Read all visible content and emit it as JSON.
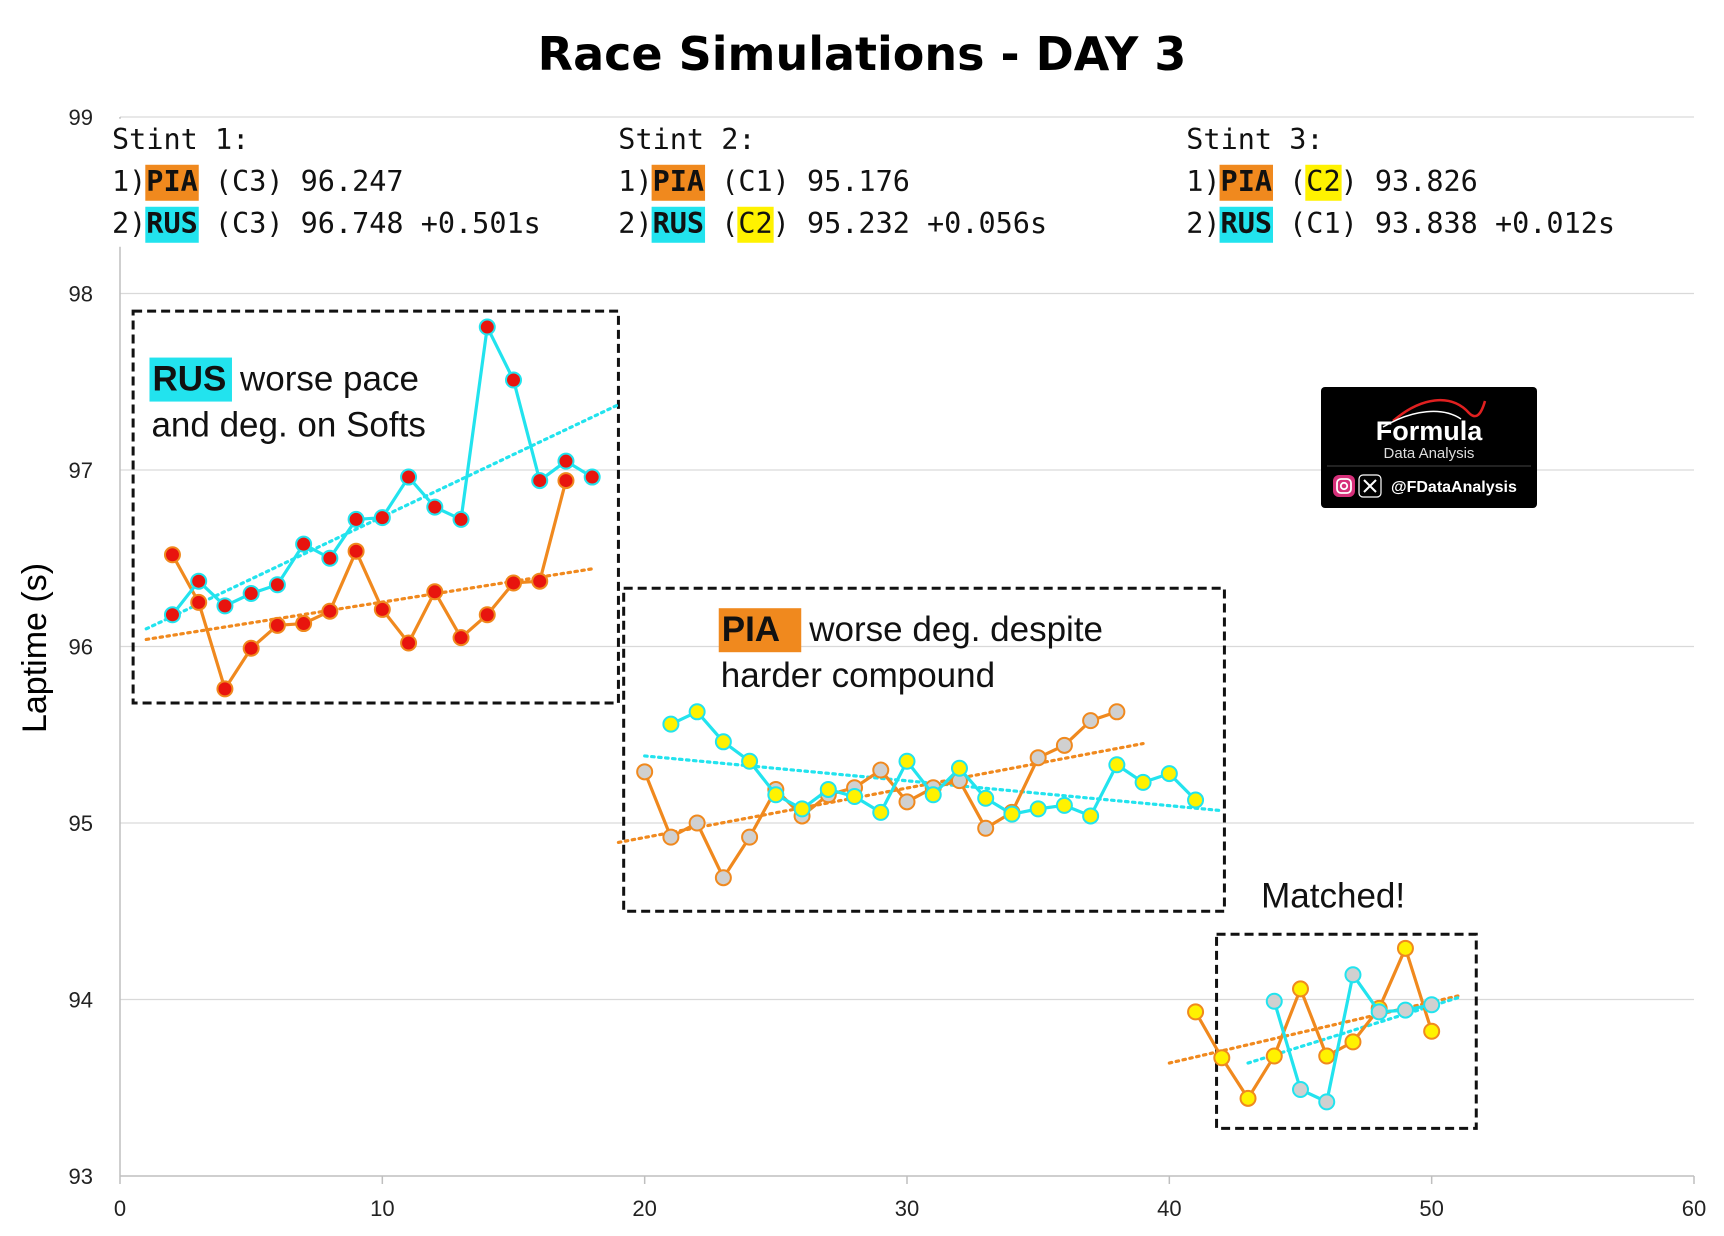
{
  "chart_data": {
    "type": "line",
    "title": "Race Simulations - DAY 3",
    "xlabel": "",
    "ylabel": "Laptime (s)",
    "xlim": [
      0,
      60
    ],
    "ylim": [
      93,
      99
    ],
    "xticks": [
      0,
      10,
      20,
      30,
      40,
      50,
      60
    ],
    "yticks": [
      93,
      94,
      95,
      96,
      97,
      98,
      99
    ],
    "grid": "horizontal",
    "series": [
      {
        "name": "PIA Stint 1 (C3)",
        "driver": "PIA",
        "compound": "C3",
        "line_color": "#F0891E",
        "marker_color": "#E8140E",
        "x": [
          2,
          3,
          4,
          5,
          6,
          7,
          8,
          9,
          10,
          11,
          12,
          13,
          14,
          15,
          16,
          17
        ],
        "y": [
          96.52,
          96.25,
          95.76,
          95.99,
          96.12,
          96.13,
          96.2,
          96.54,
          96.21,
          96.02,
          96.31,
          96.05,
          96.18,
          96.36,
          96.37,
          96.94
        ]
      },
      {
        "name": "RUS Stint 1 (C3)",
        "driver": "RUS",
        "compound": "C3",
        "line_color": "#22E3EE",
        "marker_color": "#E8140E",
        "x": [
          2,
          3,
          4,
          5,
          6,
          7,
          8,
          9,
          10,
          11,
          12,
          13,
          14,
          15,
          16,
          17,
          18
        ],
        "y": [
          96.18,
          96.37,
          96.23,
          96.3,
          96.35,
          96.58,
          96.5,
          96.72,
          96.73,
          96.96,
          96.79,
          96.72,
          97.81,
          97.51,
          96.94,
          97.05,
          96.96
        ]
      },
      {
        "name": "PIA Stint 2 (C1)",
        "driver": "PIA",
        "compound": "C1",
        "line_color": "#F0891E",
        "marker_color": "#D0D0D0",
        "x": [
          20,
          21,
          22,
          23,
          24,
          25,
          26,
          27,
          28,
          29,
          30,
          31,
          32,
          33,
          34,
          35,
          36,
          37,
          38
        ],
        "y": [
          95.29,
          94.92,
          95.0,
          94.69,
          94.92,
          95.19,
          95.04,
          95.16,
          95.2,
          95.3,
          95.12,
          95.2,
          95.24,
          94.97,
          95.06,
          95.37,
          95.44,
          95.58,
          95.63
        ]
      },
      {
        "name": "RUS Stint 2 (C2)",
        "driver": "RUS",
        "compound": "C2",
        "line_color": "#22E3EE",
        "marker_color": "#FFF200",
        "x": [
          21,
          22,
          23,
          24,
          25,
          26,
          27,
          28,
          29,
          30,
          31,
          32,
          33,
          34,
          35,
          36,
          37,
          38,
          39,
          40,
          41
        ],
        "y": [
          95.56,
          95.63,
          95.46,
          95.35,
          95.16,
          95.08,
          95.19,
          95.15,
          95.06,
          95.35,
          95.16,
          95.31,
          95.14,
          95.05,
          95.08,
          95.1,
          95.04,
          95.33,
          95.23,
          95.28,
          95.13
        ]
      },
      {
        "name": "PIA Stint 3 (C2)",
        "driver": "PIA",
        "compound": "C2",
        "line_color": "#F0891E",
        "marker_color": "#FFF200",
        "x": [
          41,
          42,
          43,
          44,
          45,
          46,
          47,
          48,
          49,
          50
        ],
        "y": [
          93.93,
          93.67,
          93.44,
          93.68,
          94.06,
          93.68,
          93.76,
          93.95,
          94.29,
          93.82
        ]
      },
      {
        "name": "RUS Stint 3 (C1)",
        "driver": "RUS",
        "compound": "C1",
        "line_color": "#22E3EE",
        "marker_color": "#D0D0D0",
        "x": [
          44,
          45,
          46,
          47,
          48,
          49,
          50
        ],
        "y": [
          93.99,
          93.49,
          93.42,
          94.14,
          93.93,
          93.94,
          93.97
        ]
      }
    ],
    "trendlines": [
      {
        "name": "PIA Stint 1 trend",
        "color": "#F0891E",
        "x": [
          1,
          18
        ],
        "y": [
          96.04,
          96.44
        ]
      },
      {
        "name": "RUS Stint 1 trend",
        "color": "#22E3EE",
        "x": [
          1,
          19
        ],
        "y": [
          96.1,
          97.37
        ]
      },
      {
        "name": "PIA Stint 2 trend",
        "color": "#F0891E",
        "x": [
          19,
          39
        ],
        "y": [
          94.89,
          95.45
        ]
      },
      {
        "name": "RUS Stint 2 trend",
        "color": "#22E3EE",
        "x": [
          20,
          42
        ],
        "y": [
          95.38,
          95.07
        ]
      },
      {
        "name": "PIA Stint 3 trend",
        "color": "#F0891E",
        "x": [
          40,
          51
        ],
        "y": [
          93.64,
          94.02
        ]
      },
      {
        "name": "RUS Stint 3 trend",
        "color": "#22E3EE",
        "x": [
          43,
          51
        ],
        "y": [
          93.64,
          94.01
        ]
      }
    ],
    "highlight_boxes": [
      {
        "name": "stint1-box",
        "x": [
          0.5,
          19
        ],
        "y": [
          95.68,
          97.9
        ]
      },
      {
        "name": "stint2-box",
        "x": [
          19.2,
          42.1
        ],
        "y": [
          94.5,
          96.33
        ]
      },
      {
        "name": "stint3-box",
        "x": [
          41.8,
          51.7
        ],
        "y": [
          93.27,
          94.37
        ]
      }
    ],
    "stint_summaries": [
      {
        "name": "stint1",
        "heading": "Stint 1:",
        "x": 0,
        "y": 98.82,
        "rows": [
          {
            "pos": "1)",
            "driver": "PIA",
            "driver_bg": "#F0891E",
            "compound": "C3",
            "compound_color": "#E8140E",
            "compound_bg": "",
            "time": "96.247",
            "gap": ""
          },
          {
            "pos": "2)",
            "driver": "RUS",
            "driver_bg": "#22E3EE",
            "compound": "C3",
            "compound_color": "#E8140E",
            "compound_bg": "",
            "time": "96.748",
            "gap": "+0.501s"
          }
        ]
      },
      {
        "name": "stint2",
        "heading": "Stint 2:",
        "x": 19.3,
        "y": 98.82,
        "rows": [
          {
            "pos": "1)",
            "driver": "PIA",
            "driver_bg": "#F0891E",
            "compound": "C1",
            "compound_color": "#AAAAAA",
            "compound_bg": "",
            "time": "95.176",
            "gap": ""
          },
          {
            "pos": "2)",
            "driver": "RUS",
            "driver_bg": "#22E3EE",
            "compound": "C2",
            "compound_color": "#000000",
            "compound_bg": "#FFF200",
            "time": "95.232",
            "gap": "+0.056s"
          }
        ]
      },
      {
        "name": "stint3",
        "heading": "Stint 3:",
        "x": 40.95,
        "y": 98.82,
        "rows": [
          {
            "pos": "1)",
            "driver": "PIA",
            "driver_bg": "#F0891E",
            "compound": "C2",
            "compound_color": "#000000",
            "compound_bg": "#FFF200",
            "time": "93.826",
            "gap": ""
          },
          {
            "pos": "2)",
            "driver": "RUS",
            "driver_bg": "#22E3EE",
            "compound": "C1",
            "compound_color": "#AAAAAA",
            "compound_bg": "",
            "time": "93.838",
            "gap": "+0.012s"
          }
        ]
      }
    ],
    "annotations": [
      {
        "name": "stint1-note",
        "x": 1.2,
        "y": 97.45,
        "highlight": "RUS",
        "highlight_bg": "#22E3EE",
        "lines": [
          "worse pace",
          "and deg. on Softs"
        ]
      },
      {
        "name": "stint2-note",
        "x": 22.9,
        "y": 96.03,
        "highlight": "PIA",
        "highlight_bg": "#F0891E",
        "lines": [
          "worse deg. despite",
          "harder compound"
        ]
      },
      {
        "name": "stint3-note",
        "x": 43.5,
        "y": 94.52,
        "highlight": "",
        "highlight_bg": "",
        "lines": [
          "Matched!"
        ]
      }
    ]
  },
  "logo": {
    "brand": "Formula",
    "subtitle": "Data Analysis",
    "handle": "@FDataAnalysis",
    "bg_color": "#000000"
  }
}
